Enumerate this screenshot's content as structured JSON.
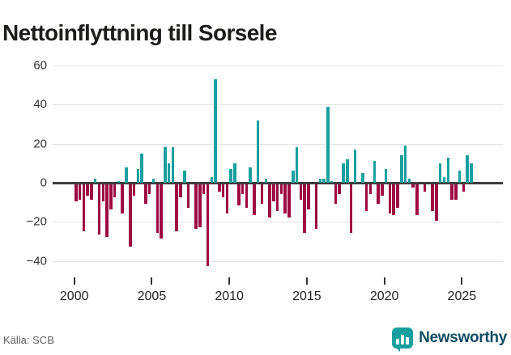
{
  "title": "Nettoinflyttning till Sorsele",
  "source": "Källa: SCB",
  "brand": {
    "name": "Newsworthy",
    "icon_color": "#18a09f",
    "text_color": "#114c63"
  },
  "chart_data": {
    "type": "bar",
    "title": "Nettoinflyttning till Sorsele",
    "xlabel": "",
    "ylabel": "",
    "period": "quarterly",
    "start": "2000-Q1",
    "end": "2025-Q3",
    "ylim": [
      -50,
      64
    ],
    "grid": "horizontal",
    "y_ticks": [
      60,
      40,
      20,
      0,
      -20,
      -40
    ],
    "y_tick_labels": [
      "60",
      "40",
      "20",
      "0",
      "−20",
      "−40"
    ],
    "x_tick_years": [
      2000,
      2005,
      2010,
      2015,
      2020,
      2025
    ],
    "x_tick_labels": [
      "2000",
      "2005",
      "2010",
      "2015",
      "2020",
      "2025"
    ],
    "positive_color": "#18a09f",
    "negative_color": "#9d0941",
    "series": [
      {
        "name": "Nettoinflyttning",
        "values": [
          -9,
          -8,
          -24,
          -6,
          -8,
          2,
          -26,
          -9,
          -27,
          -13,
          -7,
          1,
          -15,
          8,
          -32,
          -6,
          7,
          15,
          -10,
          -5,
          2,
          -25,
          -28,
          18,
          10,
          18,
          -24,
          -7,
          6,
          -12,
          0,
          -23,
          -22,
          -5,
          -42,
          3,
          53,
          -4,
          -7,
          -15,
          7,
          10,
          -11,
          -5,
          -12,
          8,
          -16,
          32,
          -10,
          2,
          -17,
          -9,
          -14,
          -5,
          -15,
          -17,
          6,
          18,
          -8,
          -25,
          -13,
          0,
          -23,
          2,
          2,
          39,
          1,
          -10,
          -5,
          10,
          12,
          -25,
          17,
          0,
          5,
          -14,
          -5,
          11,
          -10,
          -6,
          7,
          -15,
          -16,
          -12,
          14,
          19,
          2,
          -2,
          -16,
          0,
          -4,
          0,
          -14,
          -19,
          10,
          3,
          13,
          -8,
          -8,
          6,
          -4,
          14,
          10
        ]
      }
    ]
  }
}
